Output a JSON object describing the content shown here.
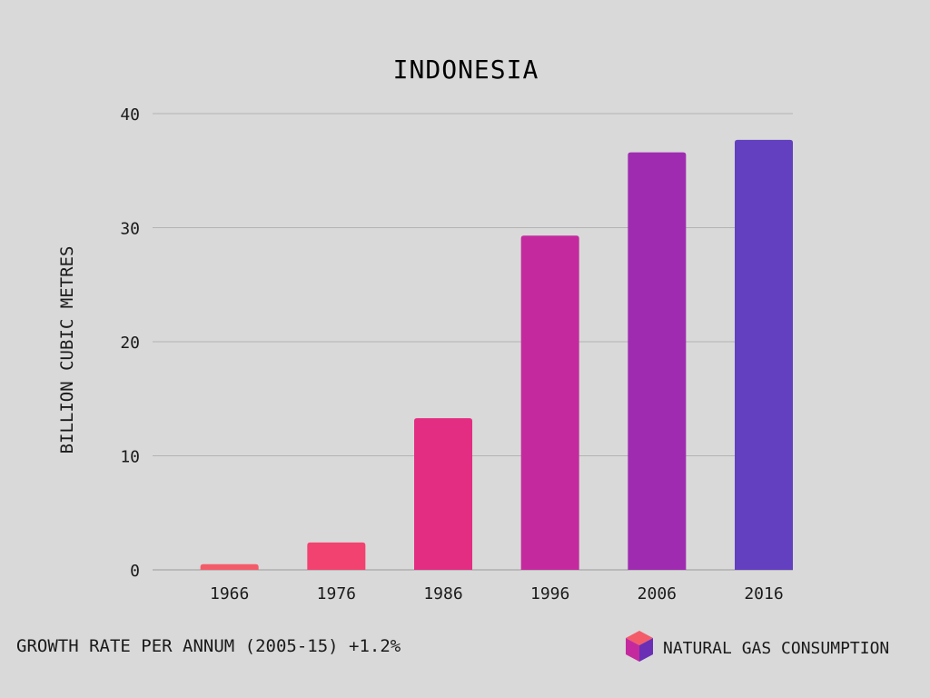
{
  "chart_data": {
    "type": "bar",
    "title": "INDONESIA",
    "xlabel": "",
    "ylabel": "BILLION CUBIC METRES",
    "categories": [
      "1966",
      "1976",
      "1986",
      "1996",
      "2006",
      "2016"
    ],
    "values": [
      0.5,
      2.4,
      13.3,
      29.3,
      36.6,
      37.7
    ],
    "ylim": [
      0,
      40
    ],
    "yticks": [
      "0",
      "10",
      "20",
      "30",
      "40"
    ],
    "grid": true,
    "bar_colors": [
      "#f45b69",
      "#f2426f",
      "#e32d82",
      "#c42a9e",
      "#9f2cb0",
      "#6240c0"
    ]
  },
  "footer": {
    "growth_text": "GROWTH RATE PER ANNUM (2005-15) +1.2%",
    "legend_label": "NATURAL GAS CONSUMPTION",
    "legend_icon": "cube-icon"
  }
}
